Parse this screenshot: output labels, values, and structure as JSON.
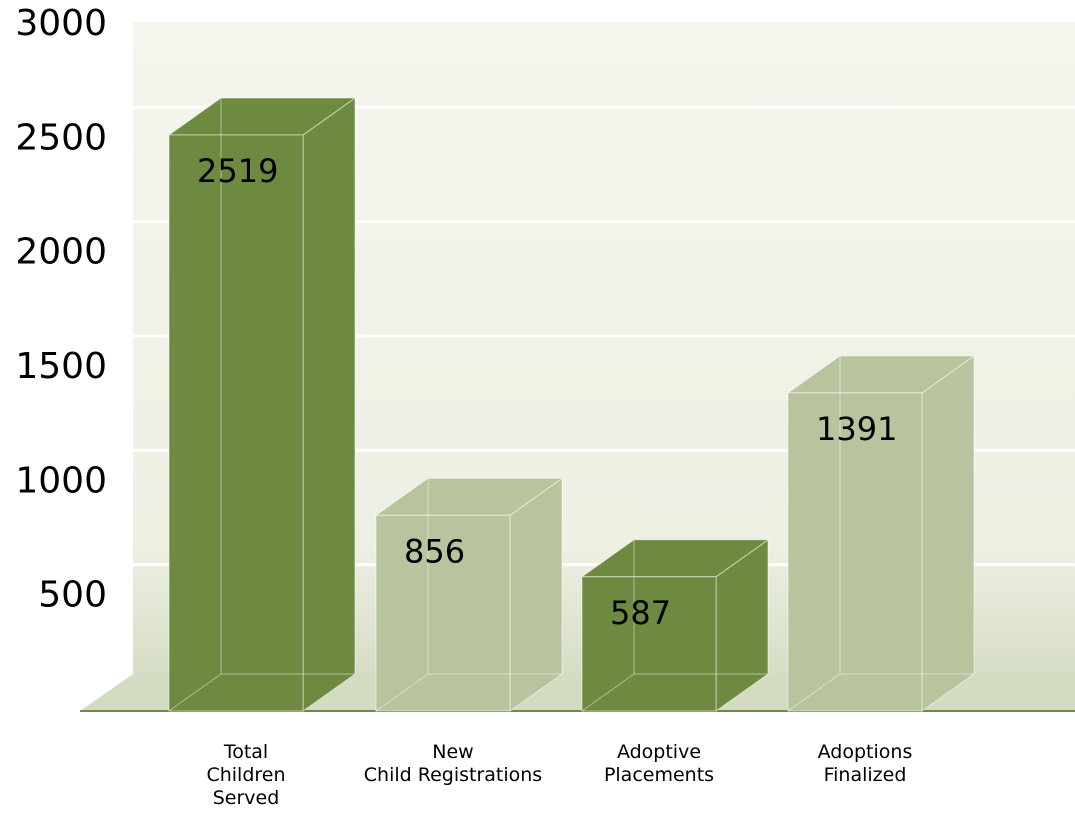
{
  "chart_data": {
    "type": "bar3d",
    "categories": [
      "Total\nChildren\nServed",
      "New\nChild Registrations",
      "Adoptive\nPlacements",
      "Adoptions\nFinalized"
    ],
    "values": [
      2519,
      856,
      587,
      1391
    ],
    "colors": [
      "#6e8a40",
      "#b8c49e",
      "#6e8a40",
      "#b8c49e"
    ],
    "ylim": [
      0,
      3000
    ],
    "yticks": [
      500,
      1000,
      1500,
      2000,
      2500,
      3000
    ],
    "grid": true
  }
}
